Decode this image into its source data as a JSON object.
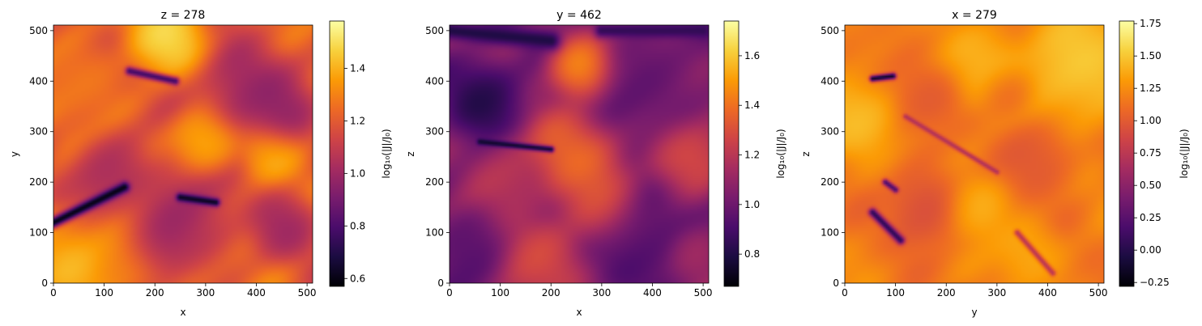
{
  "colorbar_label": "log₁₀(|J|/J₀)",
  "colormap": "inferno",
  "colormap_stops": [
    "#000004",
    "#1b0c41",
    "#4a0c6b",
    "#781c6d",
    "#a52c60",
    "#cf4446",
    "#ed6925",
    "#fb9b06",
    "#f7d13d",
    "#fcffa4"
  ],
  "chart_data": [
    {
      "type": "heatmap",
      "title": "z = 278",
      "xlabel": "x",
      "ylabel": "y",
      "xlim": [
        0,
        511
      ],
      "ylim": [
        0,
        511
      ],
      "xticks": [
        0,
        100,
        200,
        300,
        400,
        500
      ],
      "yticks": [
        0,
        100,
        200,
        300,
        400,
        500
      ],
      "grid": false,
      "colorbar": {
        "label": "log₁₀(|J|/J₀)",
        "range": [
          0.57,
          1.58
        ],
        "ticks": [
          0.6,
          0.8,
          1.0,
          1.2,
          1.4
        ],
        "tick_labels": [
          "0.6",
          "0.8",
          "1.0",
          "1.2",
          "1.4"
        ]
      },
      "features": {
        "background": 1.22,
        "blobs": [
          {
            "x": 220,
            "y": 490,
            "r": 60,
            "v": 1.56
          },
          {
            "x": 300,
            "y": 280,
            "r": 50,
            "v": 1.48
          },
          {
            "x": 430,
            "y": 260,
            "r": 45,
            "v": 1.42
          },
          {
            "x": 40,
            "y": 40,
            "r": 70,
            "v": 1.45
          },
          {
            "x": 150,
            "y": 60,
            "r": 60,
            "v": 1.4
          },
          {
            "x": 380,
            "y": 380,
            "r": 70,
            "v": 0.88
          },
          {
            "x": 450,
            "y": 330,
            "r": 50,
            "v": 0.9
          },
          {
            "x": 250,
            "y": 130,
            "r": 80,
            "v": 0.92
          },
          {
            "x": 200,
            "y": 80,
            "r": 50,
            "v": 0.9
          },
          {
            "x": 110,
            "y": 215,
            "r": 60,
            "v": 0.95
          },
          {
            "x": 460,
            "y": 110,
            "r": 50,
            "v": 0.95
          },
          {
            "x": 60,
            "y": 400,
            "r": 60,
            "v": 1.3
          }
        ],
        "ridges": [
          {
            "x1": 0,
            "y1": 120,
            "x2": 140,
            "y2": 190,
            "w": 10,
            "v": 0.6
          },
          {
            "x1": 250,
            "y1": 170,
            "x2": 320,
            "y2": 160,
            "w": 8,
            "v": 0.62
          },
          {
            "x1": 150,
            "y1": 420,
            "x2": 240,
            "y2": 400,
            "w": 8,
            "v": 0.78
          }
        ]
      }
    },
    {
      "type": "heatmap",
      "title": "y = 462",
      "xlabel": "x",
      "ylabel": "z",
      "xlim": [
        0,
        511
      ],
      "ylim": [
        0,
        511
      ],
      "xticks": [
        0,
        100,
        200,
        300,
        400,
        500
      ],
      "yticks": [
        0,
        100,
        200,
        300,
        400,
        500
      ],
      "grid": false,
      "colorbar": {
        "label": "log₁₀(|J|/J₀)",
        "range": [
          0.67,
          1.74
        ],
        "ticks": [
          0.8,
          1.0,
          1.2,
          1.4,
          1.6
        ],
        "tick_labels": [
          "0.8",
          "1.0",
          "1.2",
          "1.4",
          "1.6"
        ]
      },
      "features": {
        "background": 1.05,
        "blobs": [
          {
            "x": 70,
            "y": 370,
            "r": 60,
            "v": 0.72
          },
          {
            "x": 380,
            "y": 90,
            "r": 80,
            "v": 0.85
          },
          {
            "x": 40,
            "y": 60,
            "r": 60,
            "v": 0.9
          },
          {
            "x": 400,
            "y": 400,
            "r": 90,
            "v": 0.95
          },
          {
            "x": 260,
            "y": 430,
            "r": 50,
            "v": 1.65
          },
          {
            "x": 240,
            "y": 250,
            "r": 70,
            "v": 1.5
          },
          {
            "x": 300,
            "y": 150,
            "r": 60,
            "v": 1.42
          },
          {
            "x": 180,
            "y": 40,
            "r": 70,
            "v": 1.35
          },
          {
            "x": 470,
            "y": 250,
            "r": 60,
            "v": 1.4
          },
          {
            "x": 120,
            "y": 210,
            "r": 60,
            "v": 1.25
          },
          {
            "x": 480,
            "y": 60,
            "r": 40,
            "v": 1.2
          }
        ],
        "ridges": [
          {
            "x1": 60,
            "y1": 280,
            "x2": 200,
            "y2": 265,
            "w": 6,
            "v": 0.75
          },
          {
            "x1": 0,
            "y1": 500,
            "x2": 200,
            "y2": 480,
            "w": 18,
            "v": 0.8
          },
          {
            "x1": 300,
            "y1": 500,
            "x2": 500,
            "y2": 500,
            "w": 14,
            "v": 0.85
          }
        ]
      }
    },
    {
      "type": "heatmap",
      "title": "x = 279",
      "xlabel": "y",
      "ylabel": "z",
      "xlim": [
        0,
        511
      ],
      "ylim": [
        0,
        511
      ],
      "xticks": [
        0,
        100,
        200,
        300,
        400,
        500
      ],
      "yticks": [
        0,
        100,
        200,
        300,
        400,
        500
      ],
      "grid": false,
      "colorbar": {
        "label": "log₁₀(|J|/J₀)",
        "range": [
          -0.28,
          1.77
        ],
        "ticks": [
          -0.25,
          0.0,
          0.25,
          0.5,
          0.75,
          1.0,
          1.25,
          1.5,
          1.75
        ],
        "tick_labels": [
          "−0.25",
          "0.00",
          "0.25",
          "0.50",
          "0.75",
          "1.00",
          "1.25",
          "1.50",
          "1.75"
        ]
      },
      "features": {
        "background": 1.18,
        "blobs": [
          {
            "x": 460,
            "y": 430,
            "r": 90,
            "v": 1.65
          },
          {
            "x": 20,
            "y": 330,
            "r": 60,
            "v": 1.55
          },
          {
            "x": 280,
            "y": 430,
            "r": 60,
            "v": 1.5
          },
          {
            "x": 260,
            "y": 150,
            "r": 50,
            "v": 1.5
          },
          {
            "x": 380,
            "y": 250,
            "r": 60,
            "v": 0.9
          },
          {
            "x": 160,
            "y": 150,
            "r": 60,
            "v": 0.8
          },
          {
            "x": 160,
            "y": 370,
            "r": 50,
            "v": 0.95
          },
          {
            "x": 320,
            "y": 380,
            "r": 40,
            "v": 0.95
          },
          {
            "x": 360,
            "y": 60,
            "r": 50,
            "v": 1.45
          }
        ],
        "ridges": [
          {
            "x1": 55,
            "y1": 405,
            "x2": 95,
            "y2": 410,
            "w": 6,
            "v": -0.15
          },
          {
            "x1": 55,
            "y1": 140,
            "x2": 110,
            "y2": 85,
            "w": 8,
            "v": 0.05
          },
          {
            "x1": 80,
            "y1": 200,
            "x2": 100,
            "y2": 185,
            "w": 6,
            "v": 0.2
          },
          {
            "x1": 120,
            "y1": 330,
            "x2": 300,
            "y2": 220,
            "w": 5,
            "v": 0.7
          },
          {
            "x1": 340,
            "y1": 100,
            "x2": 410,
            "y2": 20,
            "w": 6,
            "v": 0.75
          }
        ]
      }
    }
  ]
}
